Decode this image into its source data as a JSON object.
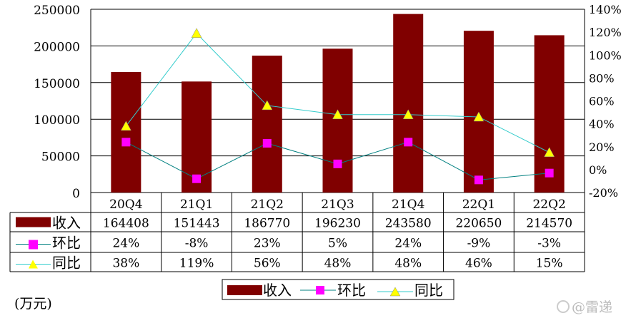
{
  "chart_data": {
    "type": "bar+line",
    "categories": [
      "20Q4",
      "21Q1",
      "21Q2",
      "21Q3",
      "21Q4",
      "22Q1",
      "22Q2"
    ],
    "series": [
      {
        "name": "收入",
        "type": "bar",
        "axis": "left",
        "color": "#800000",
        "values": [
          164408,
          151443,
          186770,
          196230,
          243580,
          220650,
          214570
        ],
        "labels": [
          "164408",
          "151443",
          "186770",
          "196230",
          "243580",
          "220650",
          "214570"
        ]
      },
      {
        "name": "环比",
        "type": "line",
        "axis": "right",
        "color": "#FF00FF",
        "line_color": "#008080",
        "marker": "square",
        "values": [
          24,
          -8,
          23,
          5,
          24,
          -9,
          -3
        ],
        "labels": [
          "24%",
          "-8%",
          "23%",
          "5%",
          "24%",
          "-9%",
          "-3%"
        ]
      },
      {
        "name": "同比",
        "type": "line",
        "axis": "right",
        "color": "#FFFF00",
        "line_color": "#33CCCC",
        "marker": "triangle",
        "values": [
          38,
          119,
          56,
          48,
          48,
          46,
          15
        ],
        "labels": [
          "38%",
          "119%",
          "56%",
          "48%",
          "48%",
          "46%",
          "15%"
        ]
      }
    ],
    "left_axis": {
      "ylim": [
        0,
        250000
      ],
      "ticks": [
        "0",
        "50000",
        "100000",
        "150000",
        "200000",
        "250000"
      ]
    },
    "right_axis": {
      "ylim": [
        -20,
        140
      ],
      "ticks": [
        "-20%",
        "0%",
        "20%",
        "40%",
        "60%",
        "80%",
        "100%",
        "120%",
        "140%"
      ]
    },
    "grid": true,
    "data_table": true,
    "legend": "bottom",
    "unit_note": "(万元)"
  },
  "watermark": "@雷递"
}
